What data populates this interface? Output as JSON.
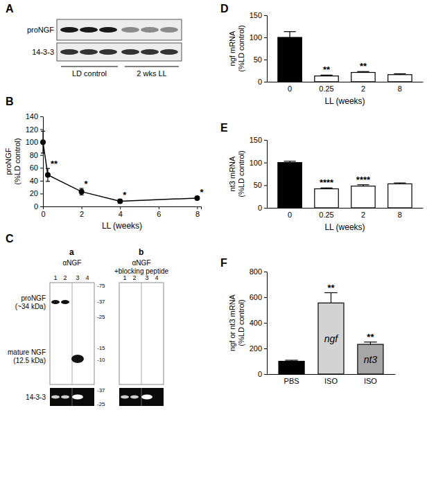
{
  "chart_data": [
    {
      "type": "line",
      "x": [
        0,
        0.25,
        2,
        4,
        8
      ],
      "values": [
        100,
        49,
        23,
        8,
        13
      ],
      "errors": [
        17,
        10,
        5,
        3,
        2
      ],
      "significance": [
        null,
        "**",
        "*",
        "*",
        "*"
      ],
      "ylabel": [
        "proNGF",
        "(%LD control)"
      ],
      "xlabel": "LL (weeks)",
      "xlim": [
        0,
        8.2
      ],
      "xticks": [
        0,
        2,
        4,
        6,
        8
      ],
      "ylim": [
        0,
        140
      ],
      "yticks": [
        0,
        20,
        40,
        60,
        80,
        100,
        120,
        140
      ],
      "marker": "circle",
      "color": "#000000"
    },
    {
      "type": "bar",
      "categories": [
        "0",
        "0.25",
        "2",
        "8"
      ],
      "values": [
        100,
        13,
        21,
        16
      ],
      "errors": [
        13,
        2,
        2,
        2
      ],
      "significance": [
        null,
        "**",
        "**",
        null
      ],
      "colors": [
        "#000000",
        "#ffffff",
        "#ffffff",
        "#ffffff"
      ],
      "ylabel": [
        "ngf mRNA",
        "(%LD control)"
      ],
      "xlabel": "LL (weeks)",
      "ylim": [
        0,
        150
      ],
      "yticks": [
        0,
        50,
        100,
        150
      ]
    },
    {
      "type": "bar",
      "categories": [
        "0",
        "0.25",
        "2",
        "8"
      ],
      "values": [
        100,
        42,
        48,
        53
      ],
      "errors": [
        3,
        2,
        3,
        2
      ],
      "significance": [
        null,
        "****",
        "****",
        null
      ],
      "colors": [
        "#000000",
        "#ffffff",
        "#ffffff",
        "#ffffff"
      ],
      "ylabel": [
        "nt3 mRNA",
        "(%LD control)"
      ],
      "xlabel": "LL (weeks)",
      "ylim": [
        0,
        150
      ],
      "yticks": [
        0,
        50,
        100,
        150
      ]
    },
    {
      "type": "bar",
      "categories": [
        "PBS",
        "ISO",
        "ISO"
      ],
      "values": [
        100,
        555,
        232
      ],
      "errors": [
        8,
        80,
        18
      ],
      "significance": [
        null,
        "**",
        "**"
      ],
      "bar_labels": [
        null,
        "ngf",
        "nt3"
      ],
      "colors": [
        "#000000",
        "#d3d3d3",
        "#a6a6a6"
      ],
      "ylabel": [
        "ngf or nt3 mRNA",
        "(%LD control)"
      ],
      "ylim": [
        0,
        800
      ],
      "yticks": [
        0,
        200,
        400,
        600,
        800
      ]
    }
  ],
  "figure": {
    "panel_labels": [
      "A",
      "B",
      "C",
      "D",
      "E",
      "F"
    ],
    "blot_a": {
      "row_labels": [
        "proNGF",
        "14-3-3"
      ],
      "group_labels": [
        "LD control",
        "2 wks LL"
      ]
    },
    "blot_c": {
      "sub_labels": [
        "a",
        "b"
      ],
      "antibody_labels": [
        [
          "αNGF"
        ],
        [
          "αNGF",
          "+blocking peptide"
        ]
      ],
      "lanes": [
        "1",
        "2",
        "3",
        "4"
      ],
      "row_labels": [
        [
          "proNGF",
          "(~34 kDa)"
        ],
        [
          "mature NGF",
          "(12.5 kDa)"
        ],
        [
          "14-3-3"
        ]
      ],
      "markers_upper": [
        "-75",
        "-37",
        "-25",
        "-15",
        "-10"
      ],
      "markers_lower": [
        "-37",
        "-25"
      ]
    }
  }
}
